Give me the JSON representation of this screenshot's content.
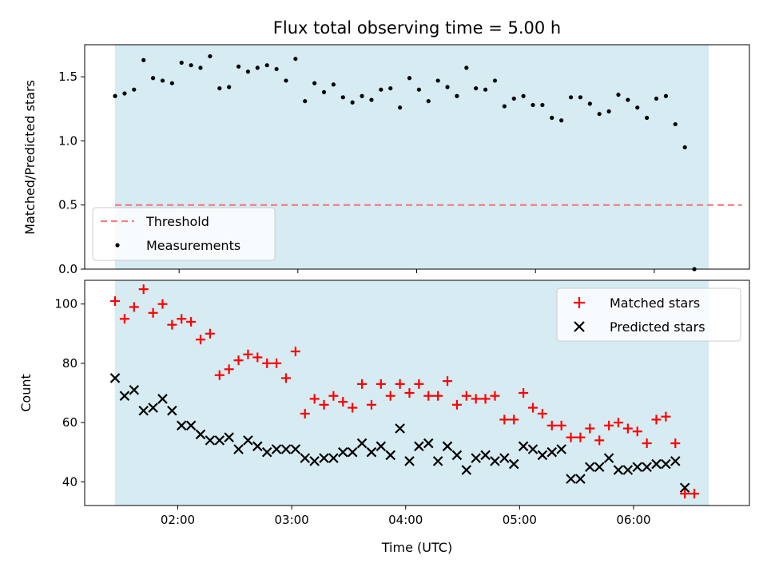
{
  "colors": {
    "span": "#add8e6",
    "threshold": "#f08080",
    "measurement": "#000000",
    "matched": "#ff0000",
    "predicted": "#000000"
  },
  "chart_data": [
    {
      "type": "scatter",
      "title": "Flux total observing time = 5.00 h",
      "xlabel": "",
      "ylabel": "Matched/Predicted stars",
      "ylim": [
        0,
        1.75
      ],
      "yticks": [
        "0.0",
        "0.5",
        "1.0",
        "1.5"
      ],
      "xlim": [
        "01:11",
        "07:01"
      ],
      "grid": false,
      "legend": "lower-left",
      "observing_span": [
        "01:27",
        "06:27"
      ],
      "threshold": {
        "name": "Threshold",
        "value": 0.5,
        "x": [
          "01:27",
          "06:57"
        ]
      },
      "series": [
        {
          "name": "Measurements",
          "x": [
            "01:27",
            "01:32",
            "01:37",
            "01:42",
            "01:47",
            "01:52",
            "01:57",
            "02:02",
            "02:07",
            "02:12",
            "02:17",
            "02:22",
            "02:27",
            "02:32",
            "02:37",
            "02:42",
            "02:47",
            "02:52",
            "02:57",
            "03:02",
            "03:07",
            "03:12",
            "03:17",
            "03:22",
            "03:27",
            "03:32",
            "03:37",
            "03:42",
            "03:47",
            "03:52",
            "03:57",
            "04:02",
            "04:07",
            "04:12",
            "04:17",
            "04:22",
            "04:27",
            "04:32",
            "04:37",
            "04:42",
            "04:47",
            "04:52",
            "04:57",
            "05:02",
            "05:07",
            "05:12",
            "05:17",
            "05:22",
            "05:27",
            "05:32",
            "05:37",
            "05:42",
            "05:47",
            "05:52",
            "05:57",
            "06:02",
            "06:07",
            "06:12",
            "06:17",
            "06:22",
            "06:27",
            "06:32"
          ],
          "values": [
            1.35,
            1.37,
            1.4,
            1.63,
            1.49,
            1.47,
            1.45,
            1.61,
            1.59,
            1.57,
            1.66,
            1.41,
            1.42,
            1.58,
            1.54,
            1.57,
            1.59,
            1.56,
            1.47,
            1.64,
            1.31,
            1.45,
            1.38,
            1.44,
            1.34,
            1.3,
            1.35,
            1.32,
            1.4,
            1.41,
            1.26,
            1.49,
            1.4,
            1.31,
            1.47,
            1.42,
            1.35,
            1.57,
            1.41,
            1.4,
            1.47,
            1.27,
            1.33,
            1.35,
            1.28,
            1.28,
            1.18,
            1.16,
            1.34,
            1.34,
            1.29,
            1.21,
            1.23,
            1.36,
            1.32,
            1.26,
            1.18,
            1.33,
            1.35,
            1.13,
            0.95,
            0.0
          ]
        }
      ]
    },
    {
      "type": "scatter",
      "xlabel": "Time (UTC)",
      "ylabel": "Count",
      "ylim": [
        32,
        108
      ],
      "yticks": [
        "40",
        "60",
        "80",
        "100"
      ],
      "xlim": [
        "01:11",
        "07:01"
      ],
      "xticks": [
        "02:00",
        "03:00",
        "04:00",
        "05:00",
        "06:00"
      ],
      "grid": false,
      "legend": "top-right",
      "observing_span": [
        "01:27",
        "06:27"
      ],
      "series": [
        {
          "name": "Matched stars",
          "marker": "plus",
          "x": [
            "01:27",
            "01:32",
            "01:37",
            "01:42",
            "01:47",
            "01:52",
            "01:57",
            "02:02",
            "02:07",
            "02:12",
            "02:17",
            "02:22",
            "02:27",
            "02:32",
            "02:37",
            "02:42",
            "02:47",
            "02:52",
            "02:57",
            "03:02",
            "03:07",
            "03:12",
            "03:17",
            "03:22",
            "03:27",
            "03:32",
            "03:37",
            "03:42",
            "03:47",
            "03:52",
            "03:57",
            "04:02",
            "04:07",
            "04:12",
            "04:17",
            "04:22",
            "04:27",
            "04:32",
            "04:37",
            "04:42",
            "04:47",
            "04:52",
            "04:57",
            "05:02",
            "05:07",
            "05:12",
            "05:17",
            "05:22",
            "05:27",
            "05:32",
            "05:37",
            "05:42",
            "05:47",
            "05:52",
            "05:57",
            "06:02",
            "06:07",
            "06:12",
            "06:17",
            "06:22",
            "06:27",
            "06:32"
          ],
          "values": [
            101,
            95,
            99,
            105,
            97,
            100,
            93,
            95,
            94,
            88,
            90,
            76,
            78,
            81,
            83,
            82,
            80,
            80,
            75,
            84,
            63,
            68,
            66,
            69,
            67,
            65,
            73,
            66,
            73,
            69,
            73,
            70,
            73,
            69,
            69,
            74,
            66,
            69,
            68,
            68,
            69,
            61,
            61,
            70,
            65,
            63,
            59,
            59,
            55,
            55,
            58,
            54,
            59,
            60,
            58,
            57,
            53,
            61,
            62,
            53,
            36,
            36
          ]
        },
        {
          "name": "Predicted stars",
          "marker": "x",
          "x": [
            "01:27",
            "01:32",
            "01:37",
            "01:42",
            "01:47",
            "01:52",
            "01:57",
            "02:02",
            "02:07",
            "02:12",
            "02:17",
            "02:22",
            "02:27",
            "02:32",
            "02:37",
            "02:42",
            "02:47",
            "02:52",
            "02:57",
            "03:02",
            "03:07",
            "03:12",
            "03:17",
            "03:22",
            "03:27",
            "03:32",
            "03:37",
            "03:42",
            "03:47",
            "03:52",
            "03:57",
            "04:02",
            "04:07",
            "04:12",
            "04:17",
            "04:22",
            "04:27",
            "04:32",
            "04:37",
            "04:42",
            "04:47",
            "04:52",
            "04:57",
            "05:02",
            "05:07",
            "05:12",
            "05:17",
            "05:22",
            "05:27",
            "05:32",
            "05:37",
            "05:42",
            "05:47",
            "05:52",
            "05:57",
            "06:02",
            "06:07",
            "06:12",
            "06:17",
            "06:22",
            "06:27"
          ],
          "values": [
            75,
            69,
            71,
            64,
            65,
            68,
            64,
            59,
            59,
            56,
            54,
            54,
            55,
            51,
            54,
            52,
            50,
            51,
            51,
            51,
            48,
            47,
            48,
            48,
            50,
            50,
            53,
            50,
            52,
            49,
            58,
            47,
            52,
            53,
            47,
            52,
            49,
            44,
            48,
            49,
            47,
            48,
            46,
            52,
            51,
            49,
            50,
            51,
            41,
            41,
            45,
            45,
            48,
            44,
            44,
            45,
            45,
            46,
            46,
            47,
            38
          ]
        }
      ]
    }
  ]
}
